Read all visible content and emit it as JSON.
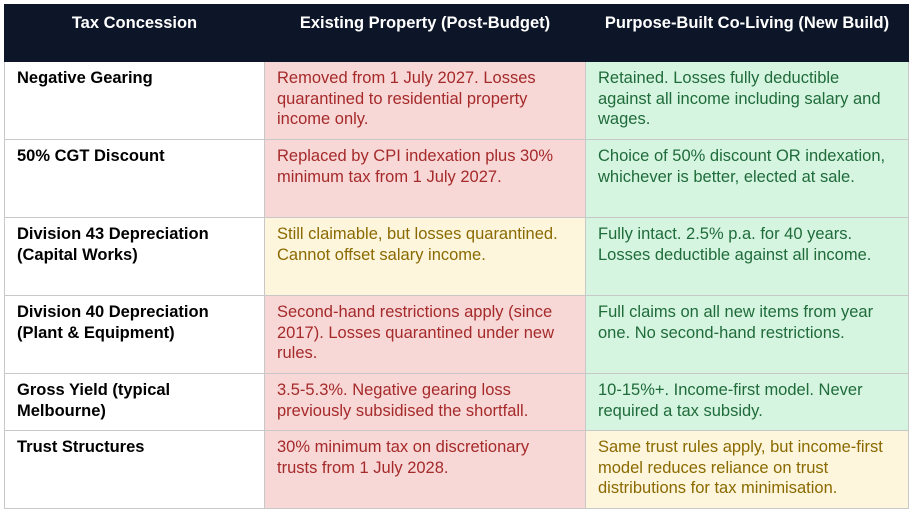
{
  "headers": [
    "Tax Concession",
    "Existing Property (Post-Budget)",
    "Purpose-Built Co-Living (New Build)"
  ],
  "rows": [
    {
      "concession": "Negative Gearing",
      "existing": "Removed from 1 July 2027. Losses quarantined to residential property income only.",
      "existing_tone": "red",
      "coliving": "Retained. Losses fully deductible against all income including salary and wages.",
      "coliving_tone": "green"
    },
    {
      "concession": "50% CGT Discount",
      "existing": "Replaced by CPI indexation plus 30% minimum tax from 1 July 2027.",
      "existing_tone": "red",
      "coliving": "Choice of 50% discount OR indexation, whichever is better, elected at sale.",
      "coliving_tone": "green"
    },
    {
      "concession": "Division 43 Depreciation (Capital Works)",
      "existing": "Still claimable, but losses quarantined. Cannot offset salary income.",
      "existing_tone": "yellow",
      "coliving": "Fully intact. 2.5% p.a. for 40 years. Losses deductible against all income.",
      "coliving_tone": "green"
    },
    {
      "concession": "Division 40 Depreciation (Plant & Equipment)",
      "existing": "Second-hand restrictions apply (since 2017). Losses quarantined under new rules.",
      "existing_tone": "red",
      "coliving": "Full claims on all new items from year one. No second-hand restrictions.",
      "coliving_tone": "green"
    },
    {
      "concession": "Gross Yield (typical Melbourne)",
      "existing": "3.5-5.3%. Negative gearing loss previously subsidised the shortfall.",
      "existing_tone": "red",
      "coliving": "10-15%+. Income-first model. Never required a tax subsidy.",
      "coliving_tone": "green"
    },
    {
      "concession": "Trust Structures",
      "existing": "30% minimum tax on discretionary trusts from 1 July 2028.",
      "existing_tone": "red",
      "coliving": "Same trust rules apply, but income-first model reduces reliance on trust distributions for tax minimisation.",
      "coliving_tone": "yellow"
    }
  ],
  "colors": {
    "header_bg": "#0d1628",
    "red_bg": "#f8d7d7",
    "red_text": "#a52a2a",
    "green_bg": "#d6f5e1",
    "green_text": "#1f6b3a",
    "yellow_bg": "#fdf6dd",
    "yellow_text": "#8a6a00"
  }
}
